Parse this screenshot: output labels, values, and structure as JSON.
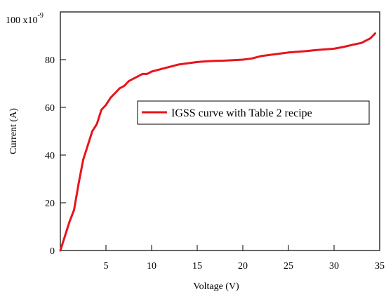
{
  "chart_data": {
    "type": "line",
    "xlabel": "Voltage (V)",
    "ylabel": "Current (A)",
    "y_scale_label": {
      "base": "100 x10",
      "exponent": "-9"
    },
    "xlim": [
      0,
      35
    ],
    "ylim": [
      0,
      100
    ],
    "xticks": [
      5,
      10,
      15,
      20,
      25,
      30,
      35
    ],
    "yticks": [
      0,
      20,
      40,
      60,
      80
    ],
    "legend": {
      "position": "right-center"
    },
    "series": [
      {
        "name": "IGSS curve with Table 2 recipe",
        "color": "#e8141b",
        "x": [
          0,
          0.5,
          1,
          1.5,
          2,
          2.5,
          3,
          3.5,
          4,
          4.5,
          5,
          5.5,
          6,
          6.5,
          7,
          7.5,
          8,
          8.5,
          9,
          9.5,
          10,
          11,
          12,
          13,
          14,
          15,
          16,
          17,
          18,
          19,
          20,
          21,
          22,
          23,
          24,
          25,
          26,
          27,
          28,
          29,
          30,
          31,
          32,
          33,
          34,
          34.5
        ],
        "y": [
          0,
          6,
          12,
          17,
          28,
          38,
          44,
          50,
          53,
          59,
          61,
          64,
          66,
          68,
          69,
          71,
          72,
          73,
          74,
          74,
          75,
          76,
          77,
          78,
          78.5,
          79,
          79.3,
          79.5,
          79.6,
          79.8,
          80,
          80.5,
          81.5,
          82,
          82.5,
          83,
          83.3,
          83.6,
          84,
          84.3,
          84.6,
          85.3,
          86.2,
          87,
          89,
          91
        ]
      }
    ]
  }
}
